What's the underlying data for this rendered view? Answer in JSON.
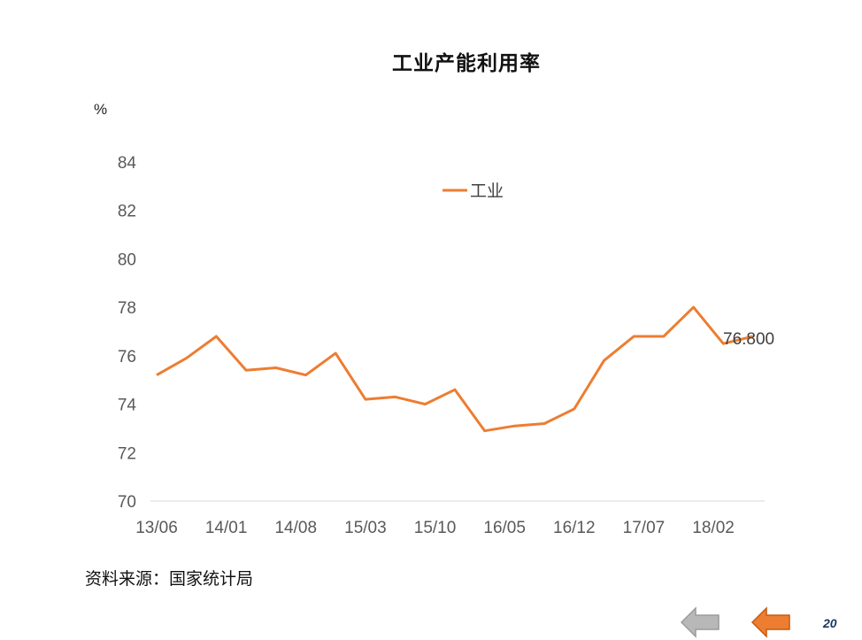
{
  "page": {
    "source": "资料来源：国家统计局",
    "page_number": "20"
  },
  "nav": {
    "prev_color": "#b8b8b8",
    "next_color": "#ed7d31"
  },
  "chart_data": {
    "type": "line",
    "title": "工业产能利用率",
    "ylabel": "%",
    "xlabel": "",
    "ylim": [
      70,
      84
    ],
    "yticks": [
      70,
      72,
      74,
      76,
      78,
      80,
      82,
      84
    ],
    "x_tick_labels": [
      "13/06",
      "14/01",
      "14/08",
      "15/03",
      "15/10",
      "16/05",
      "16/12",
      "17/07",
      "18/02"
    ],
    "x": [
      "13/06",
      "13/09",
      "13/12",
      "14/03",
      "14/06",
      "14/09",
      "14/12",
      "15/03",
      "15/06",
      "15/09",
      "15/12",
      "16/03",
      "16/06",
      "16/09",
      "16/12",
      "17/03",
      "17/06",
      "17/09",
      "17/12",
      "18/03",
      "18/06"
    ],
    "series": [
      {
        "name": "工业",
        "color": "#ed7d31",
        "values": [
          75.2,
          75.9,
          76.8,
          75.4,
          75.5,
          75.2,
          76.1,
          74.2,
          74.3,
          74.0,
          74.6,
          72.9,
          73.1,
          73.2,
          73.8,
          75.8,
          76.8,
          76.8,
          78.0,
          76.5,
          76.8
        ]
      }
    ],
    "annotation": {
      "text": "76.800"
    },
    "grid": false,
    "legend_position": "top-center"
  }
}
